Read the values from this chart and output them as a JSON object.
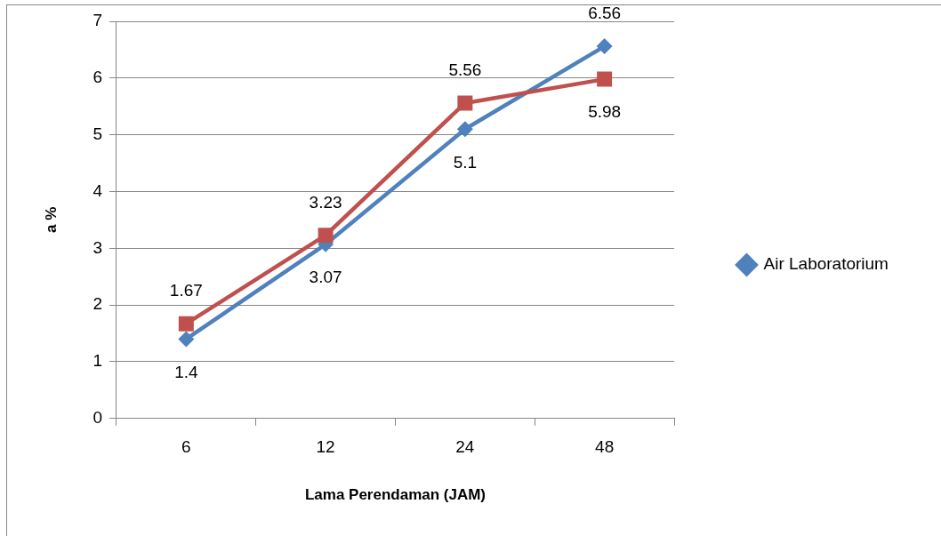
{
  "chart_data": {
    "type": "line",
    "xlabel": "Lama Perendaman (JAM)",
    "ylabel": "a %",
    "categories": [
      "6",
      "12",
      "24",
      "48"
    ],
    "series": [
      {
        "name": "Air Laboratorium",
        "color": "#4f81bd",
        "marker": "diamond",
        "values": [
          1.4,
          3.07,
          5.1,
          6.56
        ]
      },
      {
        "color": "#c0504d",
        "marker": "square",
        "values": [
          1.67,
          3.23,
          5.56,
          5.98
        ]
      }
    ],
    "ylim": [
      0,
      7
    ],
    "yticks": [
      0,
      1,
      2,
      3,
      4,
      5,
      6,
      7
    ],
    "grid": "y",
    "legend": "right",
    "data_labels": true,
    "line_style": "solid"
  }
}
